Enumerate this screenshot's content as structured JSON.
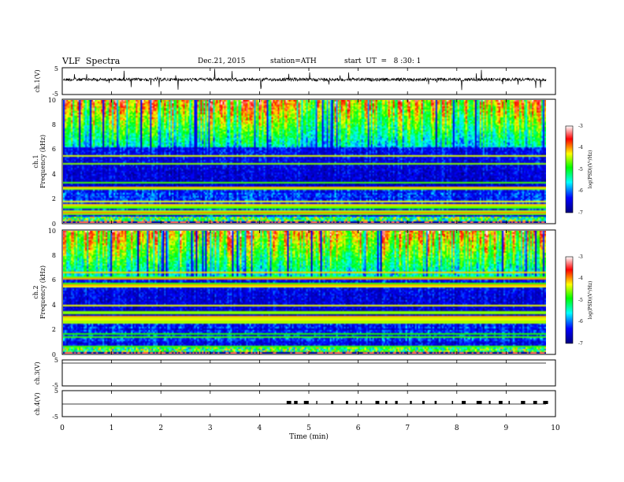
{
  "header": {
    "title": "VLF  Spectra",
    "date": "Dec.21, 2015",
    "station": "station=ATH",
    "start": "start  UT  =   8 :30: 1"
  },
  "chart_data": [
    {
      "type": "line",
      "panel": "ch1-waveform",
      "ylabel": "ch.1(V)",
      "ylim": [
        -5,
        5
      ],
      "yticks": [
        "5",
        "-5"
      ],
      "xlim": [
        0,
        10
      ],
      "color": "#000000"
    },
    {
      "type": "heatmap",
      "panel": "ch1-spectrogram",
      "ylabel": "ch.1\nFrequency (kHz)",
      "ylim": [
        0,
        10
      ],
      "yticks": [
        "0",
        "2",
        "4",
        "6",
        "8",
        "10"
      ],
      "xlim": [
        0,
        9.8
      ],
      "colorbar": {
        "label": "log(PSD)(V²/Hz)",
        "range": [
          -7,
          -3
        ],
        "ticks": [
          "-3",
          "-4",
          "-5",
          "-6",
          "-7"
        ]
      }
    },
    {
      "type": "heatmap",
      "panel": "ch2-spectrogram",
      "ylabel": "ch.2\nFrequency (kHz)",
      "ylim": [
        0,
        10
      ],
      "yticks": [
        "0",
        "2",
        "4",
        "6",
        "8",
        "10"
      ],
      "xlim": [
        0,
        9.8
      ],
      "colorbar": {
        "label": "log(PSD)(V²/Hz)",
        "range": [
          -7,
          -3
        ],
        "ticks": [
          "-3",
          "-4",
          "-5",
          "-6",
          "-7"
        ]
      }
    },
    {
      "type": "line",
      "panel": "ch3-waveform",
      "ylabel": "ch.3(V)",
      "ylim": [
        -5,
        5
      ],
      "yticks": [
        "5",
        "-5"
      ],
      "xlim": [
        0,
        10
      ]
    },
    {
      "type": "line",
      "panel": "ch4-waveform",
      "ylabel": "ch.4(V)",
      "ylim": [
        -5,
        5
      ],
      "yticks": [
        "5",
        "-5"
      ],
      "xlim": [
        0,
        10
      ],
      "pulse_times_min": [
        4.55,
        4.7,
        4.9,
        5.15,
        5.45,
        5.75,
        5.95,
        6.05,
        6.35,
        6.55,
        6.75,
        7.05,
        7.3,
        7.55,
        7.9,
        8.1,
        8.4,
        8.65,
        8.85,
        9.05,
        9.3,
        9.55,
        9.75
      ]
    }
  ],
  "xaxis": {
    "label": "Time  (min)",
    "ticks": [
      "0",
      "1",
      "2",
      "3",
      "4",
      "5",
      "6",
      "7",
      "8",
      "9",
      "10"
    ]
  },
  "colors": {
    "colormap": [
      "#000080",
      "#0000ff",
      "#00ffff",
      "#00ff00",
      "#ffff00",
      "#ff0000",
      "#ffffff"
    ]
  }
}
